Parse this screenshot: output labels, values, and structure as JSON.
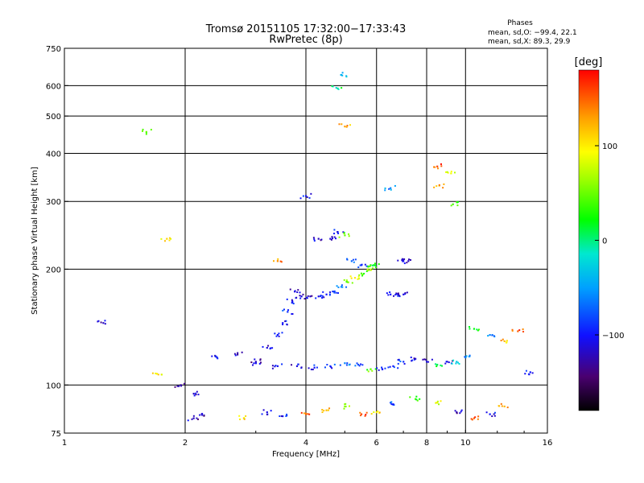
{
  "chart_data": {
    "type": "scatter",
    "title": "Tromsø 20151105 17:32:00−17:33:43",
    "subtitle": "RwPretec (8p)",
    "stats_title": "Phases",
    "stats_line1": "mean, sd,O: −99.4, 22.1",
    "stats_line2": "mean, sd,X:  89.3, 29.9",
    "xlabel": "Frequency [MHz]",
    "ylabel": "Stationary phase Virtual Height [km]",
    "x_scale": "log",
    "y_scale": "log",
    "xlim": [
      1,
      16
    ],
    "ylim": [
      75,
      750
    ],
    "x_ticks": [
      1,
      2,
      4,
      6,
      8,
      10,
      16
    ],
    "x_tick_labels": [
      "1",
      "2",
      "4",
      "6",
      "8",
      "10",
      "16"
    ],
    "y_ticks": [
      75,
      100,
      200,
      300,
      400,
      500,
      600,
      750
    ],
    "y_tick_labels": [
      "75",
      "100",
      "200",
      "300",
      "400",
      "500",
      "600",
      "750"
    ],
    "x_grid": [
      2,
      4,
      6,
      8,
      10
    ],
    "y_grid": [
      100,
      200,
      300,
      400,
      500,
      600
    ],
    "colorbar": {
      "label": "[deg]",
      "range": [
        -180,
        180
      ],
      "ticks": [
        100,
        0,
        -100
      ],
      "tick_labels": [
        "100",
        "0",
        "−100"
      ]
    },
    "traces": [
      {
        "name": "o-trace-low",
        "f": [
          1.95,
          2.1,
          2.4,
          2.7,
          3.0,
          3.4,
          3.8,
          4.2,
          4.6,
          5.0,
          5.4,
          5.8,
          6.2,
          6.6,
          7.0,
          7.5,
          8.0,
          8.5,
          9.0,
          9.5,
          10.0
        ],
        "h": [
          100,
          95,
          118,
          120,
          114,
          112,
          112,
          111,
          112,
          114,
          113,
          110,
          110,
          112,
          115,
          117,
          115,
          113,
          115,
          115,
          118
        ],
        "phase": [
          -130,
          -120,
          -110,
          -120,
          -110,
          -105,
          -110,
          -100,
          -90,
          -60,
          -80,
          40,
          -100,
          -100,
          -90,
          -110,
          -110,
          0,
          -120,
          -30,
          -60
        ]
      },
      {
        "name": "o-trace-rise",
        "f": [
          3.0,
          3.2,
          3.4,
          3.5,
          3.6,
          3.7,
          3.75
        ],
        "h": [
          115,
          125,
          135,
          145,
          155,
          165,
          175
        ],
        "phase": [
          -120,
          -110,
          -100,
          -100,
          -90,
          -100,
          -110
        ]
      },
      {
        "name": "o-trace-mid",
        "f": [
          3.9,
          4.1,
          4.3,
          4.5,
          4.7,
          4.9,
          5.1,
          5.3,
          5.5,
          5.7,
          5.9,
          6.5,
          6.8,
          7.0
        ],
        "h": [
          170,
          170,
          170,
          172,
          175,
          180,
          185,
          190,
          195,
          200,
          205,
          172,
          172,
          172
        ],
        "phase": [
          -110,
          -115,
          -110,
          -100,
          -80,
          -60,
          60,
          100,
          40,
          80,
          20,
          -100,
          -110,
          -110
        ]
      },
      {
        "name": "upper-echoes",
        "f": [
          4.0,
          4.3,
          4.6,
          4.8,
          5.0,
          5.2,
          5.5,
          5.8,
          6.5,
          7.0,
          7.2
        ],
        "h": [
          310,
          240,
          240,
          250,
          245,
          210,
          205,
          205,
          325,
          210,
          210
        ],
        "phase": [
          -100,
          -120,
          -110,
          -90,
          50,
          -70,
          -100,
          30,
          -60,
          -110,
          -120
        ]
      },
      {
        "name": "scattered",
        "f": [
          1.25,
          1.6,
          1.7,
          1.8,
          3.4,
          4.8,
          4.9,
          5.0,
          8.5,
          8.6,
          9.2,
          9.3,
          10.5,
          11.5,
          12.5,
          13.5,
          14.5
        ],
        "h": [
          145,
          455,
          107,
          240,
          210,
          590,
          640,
          470,
          370,
          330,
          355,
          295,
          140,
          135,
          130,
          138,
          108
        ],
        "phase": [
          -120,
          60,
          100,
          110,
          140,
          0,
          -40,
          130,
          160,
          120,
          90,
          40,
          20,
          -60,
          120,
          150,
          -100
        ]
      },
      {
        "name": "low-echoes",
        "f": [
          2.1,
          2.2,
          2.8,
          3.2,
          3.5,
          4.0,
          4.5,
          5.0,
          5.5,
          6.0,
          6.5,
          7.5,
          8.5,
          9.5,
          10.5,
          11.5,
          12.5
        ],
        "h": [
          82,
          84,
          82,
          85,
          83,
          84,
          86,
          88,
          84,
          85,
          90,
          92,
          90,
          85,
          82,
          84,
          88
        ],
        "phase": [
          -120,
          -130,
          110,
          -110,
          -100,
          150,
          120,
          60,
          160,
          100,
          -80,
          40,
          80,
          -120,
          150,
          -100,
          120
        ]
      }
    ]
  }
}
